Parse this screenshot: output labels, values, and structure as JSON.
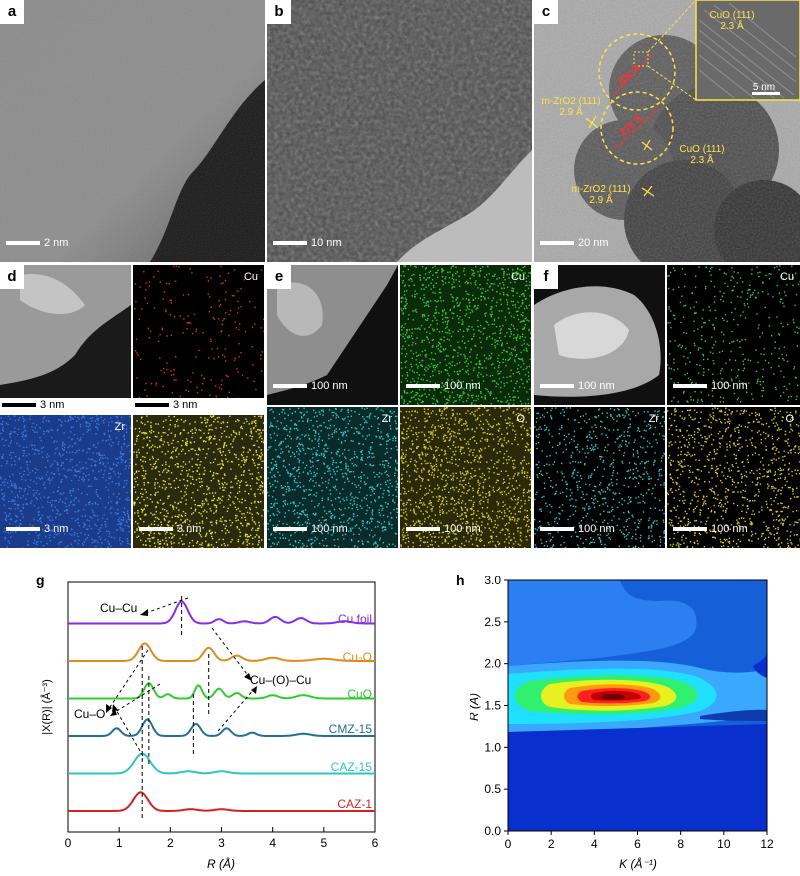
{
  "panels": {
    "a": {
      "label": "a",
      "scale": "2 nm"
    },
    "b": {
      "label": "b",
      "scale": "10 nm"
    },
    "c": {
      "label": "c",
      "scale": "20 nm",
      "inset_label": "CuO (111)",
      "inset_spacing": "2.3 Å",
      "inset_scale": "5 nm",
      "ann1_label": "m-ZrO2 (111)",
      "ann1_spacing": "2.9 Å",
      "ann2_label": "CuO (111)",
      "ann2_spacing": "2.3 Å",
      "ann3_label": "m-ZrO2 (111)",
      "ann3_spacing": "2.9 Å",
      "dist1": "220 Å",
      "dist2": "220 Å"
    },
    "d": {
      "label": "d",
      "cu": "Cu",
      "zr": "Zr",
      "scale": "3 nm"
    },
    "e": {
      "label": "e",
      "cu": "Cu",
      "zr": "Zr",
      "o": "O",
      "scale": "100 nm"
    },
    "f": {
      "label": "f",
      "cu": "Cu",
      "zr": "Zr",
      "o": "O",
      "scale": "100 nm"
    }
  },
  "colors": {
    "cu_foil": "#8a2be2",
    "cu2o": "#e08a1e",
    "cuo": "#2ecc2e",
    "cmz15": "#1f6f9a",
    "caz15": "#2ec4c4",
    "caz1": "#d42020"
  },
  "chart_data": [
    {
      "panel": "g",
      "type": "line",
      "xlabel": "R (Å)",
      "ylabel": "|X(R)| (Å⁻³)",
      "xlim": [
        0,
        6
      ],
      "xticks": [
        0,
        1,
        2,
        3,
        4,
        5,
        6
      ],
      "series": [
        {
          "name": "Cu foil",
          "offset": 5,
          "peaks": [
            [
              2.22,
              1.0,
              0.17
            ],
            [
              2.95,
              0.2,
              0.12
            ],
            [
              3.45,
              0.1,
              0.15
            ],
            [
              4.05,
              0.3,
              0.15
            ],
            [
              4.55,
              0.25,
              0.15
            ],
            [
              5.4,
              0.1,
              0.2
            ]
          ]
        },
        {
          "name": "Cu2O",
          "offset": 4,
          "peaks": [
            [
              1.5,
              0.8,
              0.17
            ],
            [
              2.75,
              0.6,
              0.15
            ],
            [
              3.3,
              0.25,
              0.15
            ],
            [
              4.0,
              0.15,
              0.2
            ],
            [
              5.0,
              0.1,
              0.3
            ]
          ]
        },
        {
          "name": "CuO",
          "offset": 3,
          "peaks": [
            [
              1.58,
              0.7,
              0.13
            ],
            [
              1.95,
              0.2,
              0.1
            ],
            [
              2.55,
              0.6,
              0.1
            ],
            [
              2.95,
              0.45,
              0.12
            ],
            [
              3.3,
              0.25,
              0.12
            ],
            [
              4.0,
              0.15,
              0.15
            ],
            [
              4.6,
              0.15,
              0.2
            ]
          ]
        },
        {
          "name": "CMZ-15",
          "offset": 2,
          "peaks": [
            [
              0.95,
              0.35,
              0.12
            ],
            [
              1.55,
              0.75,
              0.14
            ],
            [
              2.5,
              0.55,
              0.13
            ],
            [
              3.1,
              0.35,
              0.12
            ],
            [
              3.6,
              0.15,
              0.12
            ],
            [
              4.6,
              0.1,
              0.2
            ]
          ]
        },
        {
          "name": "CAZ-15",
          "offset": 1,
          "peaks": [
            [
              1.45,
              0.9,
              0.22
            ],
            [
              2.35,
              0.1,
              0.2
            ],
            [
              3.0,
              0.1,
              0.2
            ]
          ]
        },
        {
          "name": "CAZ-1",
          "offset": 0,
          "peaks": [
            [
              1.42,
              0.85,
              0.2
            ],
            [
              2.4,
              0.08,
              0.2
            ],
            [
              3.0,
              0.08,
              0.2
            ]
          ]
        }
      ],
      "annotations": [
        "Cu–Cu",
        "Cu–(O)–Cu",
        "Cu–O"
      ]
    },
    {
      "panel": "h",
      "type": "heatmap",
      "xlabel": "K (Å⁻¹)",
      "ylabel": "R (Å)",
      "xlim": [
        0,
        12
      ],
      "ylim": [
        0,
        3.0
      ],
      "xticks": [
        0,
        2,
        4,
        6,
        8,
        10,
        12
      ],
      "yticks": [
        0,
        0.5,
        1.0,
        1.5,
        2.0,
        2.5,
        3.0
      ],
      "max_at": {
        "k": 5.6,
        "r": 1.45
      }
    }
  ],
  "labels": {
    "g_letter": "g",
    "h_letter": "h",
    "cu_cu": "Cu–Cu",
    "cu_o_cu": "Cu–(O)–Cu",
    "cu_o": "Cu–O",
    "legend_cu_foil": "Cu foil",
    "legend_cu2o": "Cu₂O",
    "legend_cuo": "CuO",
    "legend_cmz15": "CMZ-15",
    "legend_caz15": "CAZ-15",
    "legend_caz1": "CAZ-1",
    "g_xlabel": "R (Å)",
    "g_ylabel": "|X(R)| (Å⁻³)",
    "h_xlabel": "K (Å⁻¹)",
    "h_ylabel": "R (Å)"
  }
}
